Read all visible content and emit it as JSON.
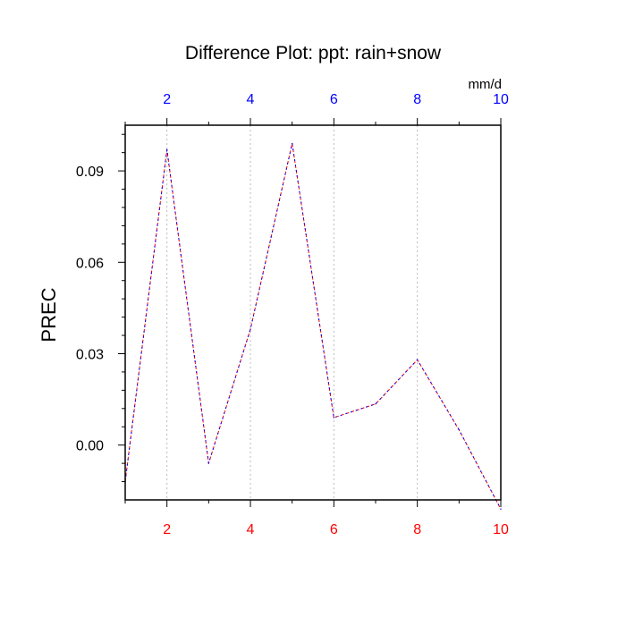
{
  "chart_data": {
    "type": "line",
    "title": "Difference Plot: ppt: rain+snow",
    "ylabel": "PREC",
    "top_axis_unit": "mm/d",
    "xlim": [
      1,
      10
    ],
    "ylim": [
      -0.018,
      0.105
    ],
    "x_ticks": [
      2,
      4,
      6,
      8,
      10
    ],
    "y_ticks": [
      0.0,
      0.03,
      0.06,
      0.09
    ],
    "y_tick_labels": [
      "0.00",
      "0.03",
      "0.06",
      "0.09"
    ],
    "grid": "vertical dashed at major x ticks",
    "colors": {
      "bottom_axis_labels": "#ff0000",
      "top_axis_labels": "#0000ff",
      "series_a": "#ff0000",
      "series_b": "#0000ff"
    },
    "series": [
      {
        "x": [
          1,
          2,
          3,
          4,
          5,
          6,
          7,
          8,
          9,
          10
        ],
        "values": [
          -0.012,
          0.097,
          -0.006,
          0.038,
          0.099,
          0.009,
          0.0135,
          0.028,
          0.005,
          -0.021
        ]
      },
      {
        "x": [
          1,
          2,
          3,
          4,
          5,
          6,
          7,
          8,
          9,
          10
        ],
        "values": [
          -0.012,
          0.097,
          -0.006,
          0.038,
          0.099,
          0.009,
          0.0135,
          0.028,
          0.005,
          -0.021
        ]
      }
    ]
  }
}
